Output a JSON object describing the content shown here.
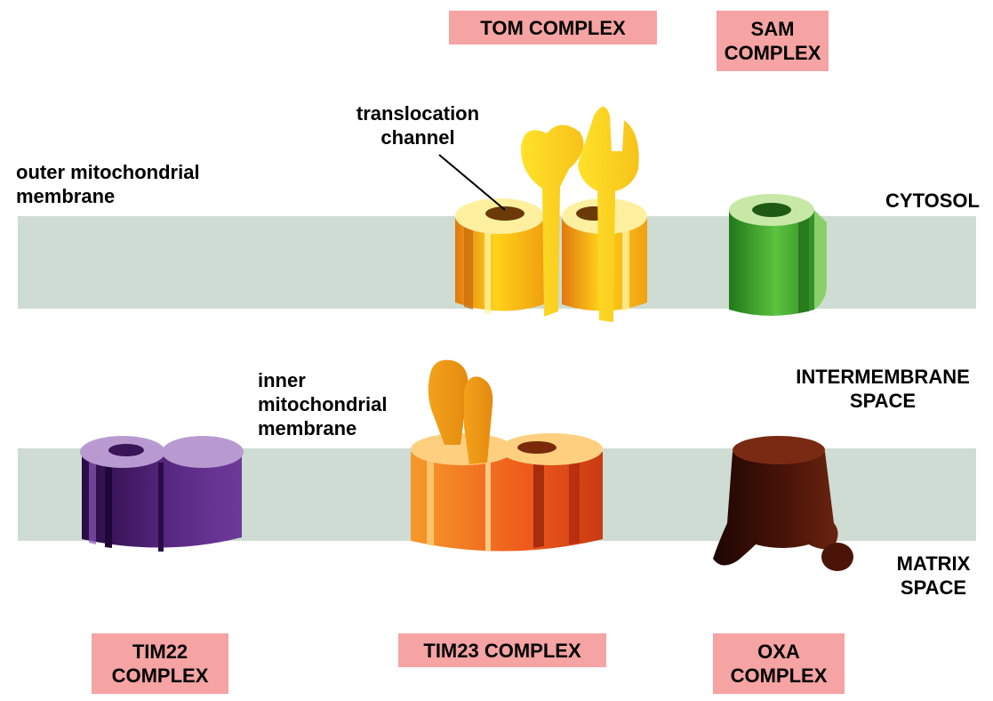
{
  "complexes": {
    "tom": "TOM COMPLEX",
    "sam": "SAM\nCOMPLEX",
    "tim22": "TIM22\nCOMPLEX",
    "tim23": "TIM23 COMPLEX",
    "oxa": "OXA\nCOMPLEX"
  },
  "labels": {
    "translocation_channel": "translocation\nchannel",
    "outer_membrane": "outer mitochondrial\nmembrane",
    "inner_membrane": "inner\nmitochondrial\nmembrane",
    "cytosol": "CYTOSOL",
    "intermembrane_space": "INTERMEMBRANE\nSPACE",
    "matrix_space": "MATRIX\nSPACE"
  },
  "colors": {
    "membrane": "#cfdcd3",
    "label_box": "#f6a3a3",
    "tom": "#f7c21a",
    "sam": "#3aa630",
    "tim22": "#4b1c6e",
    "tim23": "#f06a1c",
    "oxa": "#3a0f05"
  }
}
